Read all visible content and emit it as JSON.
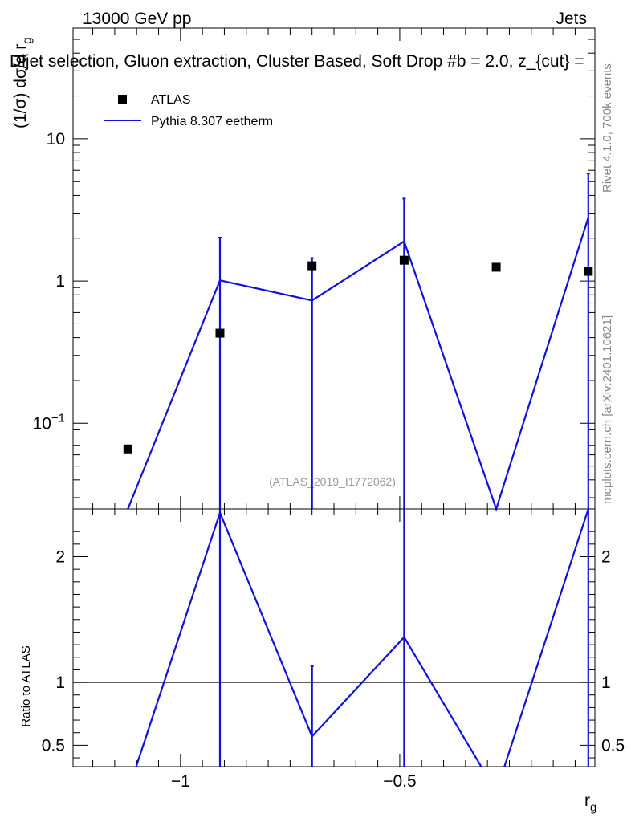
{
  "header": {
    "left": "13000 GeV pp",
    "right": "Jets",
    "title": "Dijet selection, Gluon extraction, Cluster Based, Soft Drop #b = 2.0, z_{cut} ="
  },
  "side_labels": {
    "rivet": "Rivet 4.1.0,  700k events",
    "mcplots": "mcplots.cern.ch [arXiv:2401.10621]"
  },
  "watermark": "(ATLAS_2019_I1772062)",
  "legend": {
    "data_label": "ATLAS",
    "mc_label": "Pythia 8.307 eetherm"
  },
  "colors": {
    "data": "#000000",
    "mc": "#1010dd",
    "ref_line": "#000000"
  },
  "chart_data": [
    {
      "type": "scatter",
      "panel": "main",
      "ylabel": "(1/σ) dσ/d r_g",
      "yscale": "log",
      "xlim": [
        -1.245,
        -0.055
      ],
      "ylim": [
        0.025,
        60
      ],
      "x_ticks": [
        -1.0,
        -0.5
      ],
      "y_ticks": [
        0.1,
        1,
        10
      ],
      "y_tick_labels": [
        "10^−1",
        "1",
        "10"
      ],
      "series": [
        {
          "name": "ATLAS",
          "x": [
            -1.12,
            -0.91,
            -0.7,
            -0.49,
            -0.28,
            -0.07
          ],
          "y": [
            0.066,
            0.43,
            1.28,
            1.4,
            1.25,
            1.17
          ]
        },
        {
          "name": "Pythia 8.307 eetherm",
          "x": [
            -1.12,
            -0.91,
            -0.7,
            -0.49,
            -0.28,
            -0.07
          ],
          "y": [
            0.025,
            1.01,
            0.73,
            1.9,
            0.025,
            2.8
          ],
          "err_up": [
            0.025,
            2.02,
            1.45,
            3.8,
            0.025,
            5.7
          ],
          "err_cap": [
            false,
            true,
            true,
            true,
            false,
            true
          ]
        }
      ]
    },
    {
      "type": "line",
      "panel": "ratio",
      "ylabel": "Ratio to ATLAS",
      "xlabel": "r_g",
      "xlim": [
        -1.245,
        -0.055
      ],
      "ylim": [
        0.33,
        2.38
      ],
      "x_ticks": [
        -1.0,
        -0.5
      ],
      "x_tick_labels": [
        "−1",
        "−0.5"
      ],
      "y_ticks": [
        0.5,
        1,
        2
      ],
      "y_tick_labels": [
        "0.5",
        "1",
        "2"
      ],
      "reference": 1,
      "series": [
        {
          "name": "Pythia 8.307 eetherm",
          "x": [
            -1.12,
            -0.91,
            -0.7,
            -0.49,
            -0.28,
            -0.07
          ],
          "y": [
            0.33,
            2.35,
            0.57,
            1.36,
            0.33,
            2.38
          ],
          "err_up": [
            0.33,
            2.38,
            1.13,
            2.38,
            0.33,
            2.38
          ]
        }
      ]
    }
  ]
}
